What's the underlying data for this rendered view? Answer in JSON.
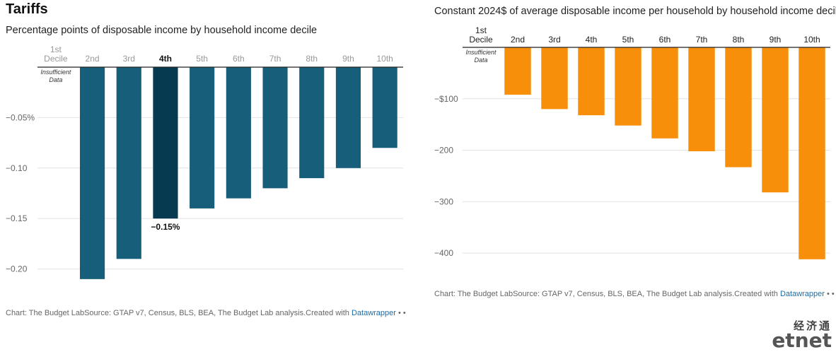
{
  "page": {
    "title": "Tariffs",
    "logo": {
      "cn": "经济通",
      "en": "etnet"
    }
  },
  "chart_data": [
    {
      "type": "bar",
      "subtitle": "Percentage points of disposable income by household income decile",
      "categories": [
        "1st Decile",
        "2nd",
        "3rd",
        "4th",
        "5th",
        "6th",
        "7th",
        "8th",
        "9th",
        "10th"
      ],
      "values": [
        null,
        -0.21,
        -0.19,
        -0.15,
        -0.14,
        -0.13,
        -0.12,
        -0.11,
        -0.1,
        -0.08
      ],
      "ylim": [
        -0.215,
        0
      ],
      "y_ticks": [
        {
          "value": -0.05,
          "label": "−0.05%"
        },
        {
          "value": -0.1,
          "label": "−0.10"
        },
        {
          "value": -0.15,
          "label": "−0.15"
        },
        {
          "value": -0.2,
          "label": "−0.20"
        }
      ],
      "highlight_index": 3,
      "highlight_label": "−0.15%",
      "null_label": "Insufficient Data",
      "colors": {
        "bar": "#175e7a",
        "highlight": "#053a50"
      },
      "grid": true,
      "footer": {
        "text": "Chart: The Budget LabSource: GTAP v7, Census, BLS, BEA, The Budget Lab analysis.Created with ",
        "link": "Datawrapper",
        "dots": "• •"
      }
    },
    {
      "type": "bar",
      "subtitle": "Constant 2024$ of average disposable income per household by household income decile",
      "categories": [
        "1st Decile",
        "2nd",
        "3rd",
        "4th",
        "5th",
        "6th",
        "7th",
        "8th",
        "9th",
        "10th"
      ],
      "values": [
        null,
        -92,
        -120,
        -132,
        -152,
        -177,
        -202,
        -233,
        -282,
        -412
      ],
      "ylim": [
        -415,
        0
      ],
      "y_ticks": [
        {
          "value": -100,
          "label": "−$100"
        },
        {
          "value": -200,
          "label": "−200"
        },
        {
          "value": -300,
          "label": "−300"
        },
        {
          "value": -400,
          "label": "−400"
        }
      ],
      "null_label": "Insufficient Data",
      "colors": {
        "bar": "#f78f0a"
      },
      "grid": true,
      "footer": {
        "text": "Chart: The Budget LabSource: GTAP v7, Census, BLS, BEA, The Budget Lab analysis.Created with ",
        "link": "Datawrapper",
        "dots": "• •"
      }
    }
  ]
}
